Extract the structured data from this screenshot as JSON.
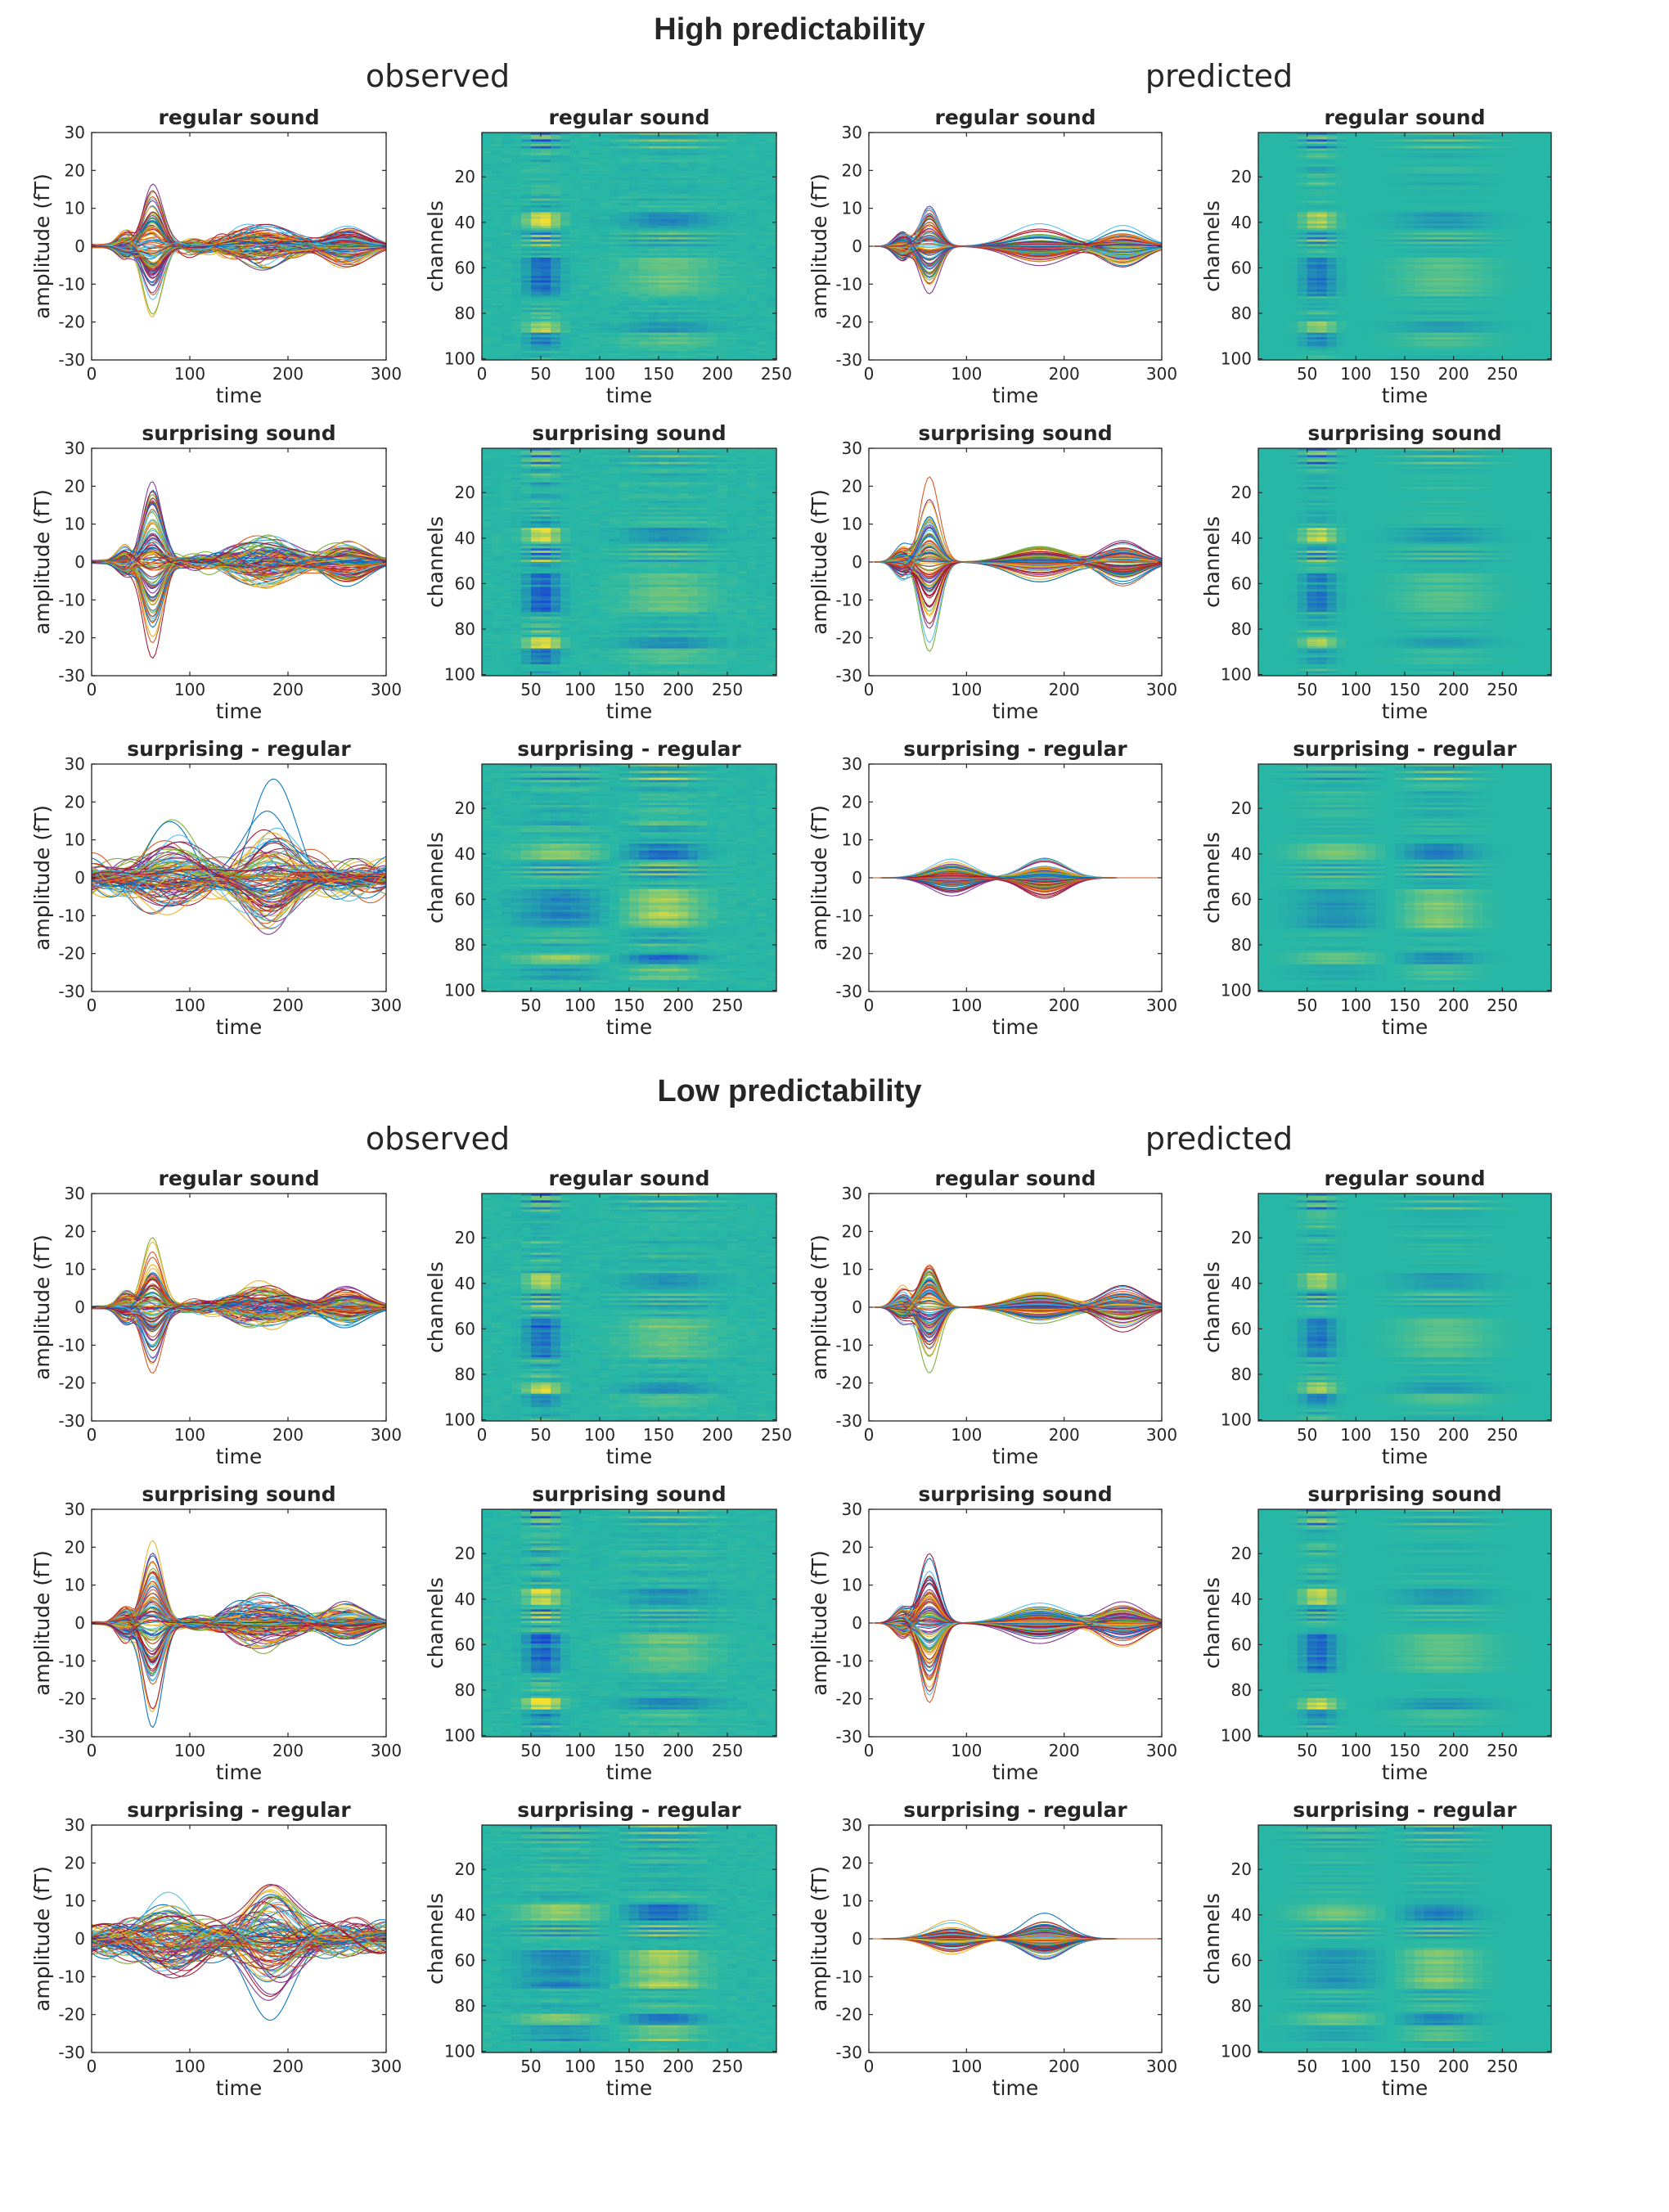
{
  "figure": {
    "sections": [
      {
        "title": "High predictability",
        "left_label": "observed",
        "right_label": "predicted"
      },
      {
        "title": "Low predictability",
        "left_label": "observed",
        "right_label": "predicted"
      }
    ],
    "row_titles": [
      "regular sound",
      "surprising sound",
      "surprising - regular"
    ],
    "colors": {
      "heatmap_base": "#26b7a6",
      "heatmap_low": "#1a5bd6",
      "heatmap_high": "#f2d83a",
      "axis": "#262626"
    }
  },
  "chart_data": [
    {
      "panel": "high-observed-regular-lines",
      "type": "line",
      "title": "regular sound",
      "xlabel": "time",
      "ylabel": "amplitude (fT)",
      "xlim": [
        0,
        300
      ],
      "ylim": [
        -30,
        30
      ],
      "xticks": [
        0,
        100,
        200,
        300
      ],
      "yticks": [
        30,
        20,
        10,
        0,
        -10,
        -20,
        -30
      ],
      "n_series": 100,
      "peak_time": 62,
      "peak_abs": 22
    },
    {
      "panel": "high-observed-regular-heatmap",
      "type": "heatmap",
      "title": "regular sound",
      "xlabel": "time",
      "ylabel": "channels",
      "xlim": [
        0,
        250
      ],
      "ylim": [
        0,
        100
      ],
      "xticks": [
        0,
        50,
        100,
        150,
        200,
        250
      ],
      "yticks": [
        20,
        40,
        60,
        80,
        100
      ],
      "n_channels": 100
    },
    {
      "panel": "high-predicted-regular-lines",
      "type": "line",
      "title": "regular sound",
      "xlabel": "time",
      "ylabel": "amplitude (fT)",
      "xlim": [
        0,
        300
      ],
      "ylim": [
        -30,
        30
      ],
      "xticks": [
        0,
        100,
        200,
        300
      ],
      "yticks": [
        30,
        20,
        10,
        0,
        -10,
        -20,
        -30
      ],
      "n_series": 100,
      "peak_time": 62,
      "peak_abs": 18
    },
    {
      "panel": "high-predicted-regular-heatmap",
      "type": "heatmap",
      "title": "regular sound",
      "xlabel": "time",
      "ylabel": "channels",
      "xlim": [
        0,
        300
      ],
      "ylim": [
        0,
        100
      ],
      "xticks": [
        50,
        100,
        150,
        200,
        250
      ],
      "yticks": [
        20,
        40,
        60,
        80,
        100
      ],
      "n_channels": 100
    },
    {
      "panel": "high-observed-surprising-lines",
      "type": "line",
      "title": "surprising sound",
      "xlabel": "time",
      "ylabel": "amplitude (fT)",
      "xlim": [
        0,
        300
      ],
      "ylim": [
        -30,
        30
      ],
      "xticks": [
        0,
        100,
        200,
        300
      ],
      "yticks": [
        30,
        20,
        10,
        0,
        -10,
        -20,
        -30
      ],
      "n_series": 100,
      "peak_time": 62,
      "peak_abs": 29
    },
    {
      "panel": "high-observed-surprising-heatmap",
      "type": "heatmap",
      "title": "surprising sound",
      "xlabel": "time",
      "ylabel": "channels",
      "xlim": [
        0,
        300
      ],
      "ylim": [
        0,
        100
      ],
      "xticks": [
        50,
        100,
        150,
        200,
        250
      ],
      "yticks": [
        20,
        40,
        60,
        80,
        100
      ],
      "n_channels": 100
    },
    {
      "panel": "high-predicted-surprising-lines",
      "type": "line",
      "title": "surprising sound",
      "xlabel": "time",
      "ylabel": "amplitude (fT)",
      "xlim": [
        0,
        300
      ],
      "ylim": [
        -30,
        30
      ],
      "xticks": [
        0,
        100,
        200,
        300
      ],
      "yticks": [
        30,
        20,
        10,
        0,
        -10,
        -20,
        -30
      ],
      "n_series": 100,
      "peak_time": 62,
      "peak_abs": 27
    },
    {
      "panel": "high-predicted-surprising-heatmap",
      "type": "heatmap",
      "title": "surprising sound",
      "xlabel": "time",
      "ylabel": "channels",
      "xlim": [
        0,
        300
      ],
      "ylim": [
        0,
        100
      ],
      "xticks": [
        50,
        100,
        150,
        200,
        250
      ],
      "yticks": [
        20,
        40,
        60,
        80,
        100
      ],
      "n_channels": 100
    },
    {
      "panel": "high-observed-diff-lines",
      "type": "line",
      "title": "surprising - regular",
      "xlabel": "time",
      "ylabel": "amplitude (fT)",
      "xlim": [
        0,
        300
      ],
      "ylim": [
        -30,
        30
      ],
      "xticks": [
        0,
        100,
        200,
        300
      ],
      "yticks": [
        30,
        20,
        10,
        0,
        -10,
        -20,
        -30
      ],
      "n_series": 100,
      "peak_time": 180,
      "peak_abs": 23
    },
    {
      "panel": "high-observed-diff-heatmap",
      "type": "heatmap",
      "title": "surprising - regular",
      "xlabel": "time",
      "ylabel": "channels",
      "xlim": [
        0,
        300
      ],
      "ylim": [
        0,
        100
      ],
      "xticks": [
        50,
        100,
        150,
        200,
        250
      ],
      "yticks": [
        20,
        40,
        60,
        80,
        100
      ],
      "n_channels": 100
    },
    {
      "panel": "high-predicted-diff-lines",
      "type": "line",
      "title": "surprising - regular",
      "xlabel": "time",
      "ylabel": "amplitude (fT)",
      "xlim": [
        0,
        300
      ],
      "ylim": [
        -30,
        30
      ],
      "xticks": [
        0,
        100,
        200,
        300
      ],
      "yticks": [
        30,
        20,
        10,
        0,
        -10,
        -20,
        -30
      ],
      "n_series": 100,
      "peak_time": 180,
      "peak_abs": 12
    },
    {
      "panel": "high-predicted-diff-heatmap",
      "type": "heatmap",
      "title": "surprising - regular",
      "xlabel": "time",
      "ylabel": "channels",
      "xlim": [
        0,
        300
      ],
      "ylim": [
        0,
        100
      ],
      "xticks": [
        50,
        100,
        150,
        200,
        250
      ],
      "yticks": [
        20,
        40,
        60,
        80,
        100
      ],
      "n_channels": 100
    },
    {
      "panel": "low-observed-regular-lines",
      "type": "line",
      "title": "regular sound",
      "xlabel": "time",
      "ylabel": "amplitude (fT)",
      "xlim": [
        0,
        300
      ],
      "ylim": [
        -30,
        30
      ],
      "xticks": [
        0,
        100,
        200,
        300
      ],
      "yticks": [
        30,
        20,
        10,
        0,
        -10,
        -20,
        -30
      ],
      "n_series": 100,
      "peak_time": 62,
      "peak_abs": 22
    },
    {
      "panel": "low-observed-regular-heatmap",
      "type": "heatmap",
      "title": "regular sound",
      "xlabel": "time",
      "ylabel": "channels",
      "xlim": [
        0,
        250
      ],
      "ylim": [
        0,
        100
      ],
      "xticks": [
        0,
        50,
        100,
        150,
        200,
        250
      ],
      "yticks": [
        20,
        40,
        60,
        80,
        100
      ],
      "n_channels": 100
    },
    {
      "panel": "low-predicted-regular-lines",
      "type": "line",
      "title": "regular sound",
      "xlabel": "time",
      "ylabel": "amplitude (fT)",
      "xlim": [
        0,
        300
      ],
      "ylim": [
        -30,
        30
      ],
      "xticks": [
        0,
        100,
        200,
        300
      ],
      "yticks": [
        30,
        20,
        10,
        0,
        -10,
        -20,
        -30
      ],
      "n_series": 100,
      "peak_time": 62,
      "peak_abs": 18
    },
    {
      "panel": "low-predicted-regular-heatmap",
      "type": "heatmap",
      "title": "regular sound",
      "xlabel": "time",
      "ylabel": "channels",
      "xlim": [
        0,
        300
      ],
      "ylim": [
        0,
        100
      ],
      "xticks": [
        50,
        100,
        150,
        200,
        250
      ],
      "yticks": [
        20,
        40,
        60,
        80,
        100
      ],
      "n_channels": 100
    },
    {
      "panel": "low-observed-surprising-lines",
      "type": "line",
      "title": "surprising sound",
      "xlabel": "time",
      "ylabel": "amplitude (fT)",
      "xlim": [
        0,
        300
      ],
      "ylim": [
        -30,
        30
      ],
      "xticks": [
        0,
        100,
        200,
        300
      ],
      "yticks": [
        30,
        20,
        10,
        0,
        -10,
        -20,
        -30
      ],
      "n_series": 100,
      "peak_time": 62,
      "peak_abs": 29
    },
    {
      "panel": "low-observed-surprising-heatmap",
      "type": "heatmap",
      "title": "surprising sound",
      "xlabel": "time",
      "ylabel": "channels",
      "xlim": [
        0,
        300
      ],
      "ylim": [
        0,
        100
      ],
      "xticks": [
        50,
        100,
        150,
        200,
        250
      ],
      "yticks": [
        20,
        40,
        60,
        80,
        100
      ],
      "n_channels": 100
    },
    {
      "panel": "low-predicted-surprising-lines",
      "type": "line",
      "title": "surprising sound",
      "xlabel": "time",
      "ylabel": "amplitude (fT)",
      "xlim": [
        0,
        300
      ],
      "ylim": [
        -30,
        30
      ],
      "xticks": [
        0,
        100,
        200,
        300
      ],
      "yticks": [
        30,
        20,
        10,
        0,
        -10,
        -20,
        -30
      ],
      "n_series": 100,
      "peak_time": 62,
      "peak_abs": 27
    },
    {
      "panel": "low-predicted-surprising-heatmap",
      "type": "heatmap",
      "title": "surprising sound",
      "xlabel": "time",
      "ylabel": "channels",
      "xlim": [
        0,
        300
      ],
      "ylim": [
        0,
        100
      ],
      "xticks": [
        50,
        100,
        150,
        200,
        250
      ],
      "yticks": [
        20,
        40,
        60,
        80,
        100
      ],
      "n_channels": 100
    },
    {
      "panel": "low-observed-diff-lines",
      "type": "line",
      "title": "surprising - regular",
      "xlabel": "time",
      "ylabel": "amplitude (fT)",
      "xlim": [
        0,
        300
      ],
      "ylim": [
        -30,
        30
      ],
      "xticks": [
        0,
        100,
        200,
        300
      ],
      "yticks": [
        30,
        20,
        10,
        0,
        -10,
        -20,
        -30
      ],
      "n_series": 100,
      "peak_time": 180,
      "peak_abs": 23
    },
    {
      "panel": "low-observed-diff-heatmap",
      "type": "heatmap",
      "title": "surprising - regular",
      "xlabel": "time",
      "ylabel": "channels",
      "xlim": [
        0,
        300
      ],
      "ylim": [
        0,
        100
      ],
      "xticks": [
        50,
        100,
        150,
        200,
        250
      ],
      "yticks": [
        20,
        40,
        60,
        80,
        100
      ],
      "n_channels": 100
    },
    {
      "panel": "low-predicted-diff-lines",
      "type": "line",
      "title": "surprising - regular",
      "xlabel": "time",
      "ylabel": "amplitude (fT)",
      "xlim": [
        0,
        300
      ],
      "ylim": [
        -30,
        30
      ],
      "xticks": [
        0,
        100,
        200,
        300
      ],
      "yticks": [
        30,
        20,
        10,
        0,
        -10,
        -20,
        -30
      ],
      "n_series": 100,
      "peak_time": 180,
      "peak_abs": 12
    },
    {
      "panel": "low-predicted-diff-heatmap",
      "type": "heatmap",
      "title": "surprising - regular",
      "xlabel": "time",
      "ylabel": "channels",
      "xlim": [
        0,
        300
      ],
      "ylim": [
        0,
        100
      ],
      "xticks": [
        50,
        100,
        150,
        200,
        250
      ],
      "yticks": [
        20,
        40,
        60,
        80,
        100
      ],
      "n_channels": 100
    }
  ]
}
